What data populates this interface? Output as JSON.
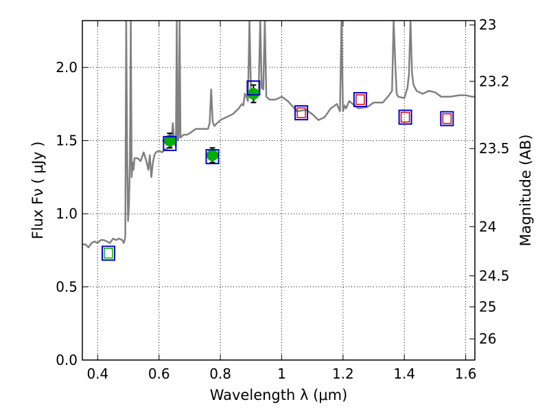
{
  "chart_data": {
    "type": "line",
    "title": "",
    "xlabel": "Wavelength  λ (μm)",
    "ylabel": "Flux  Fν  ( μJy )",
    "y2label": "Magnitude (AB)",
    "xlim": [
      0.35,
      1.63
    ],
    "ylim": [
      0.0,
      2.32
    ],
    "xticks": [
      0.4,
      0.6,
      0.8,
      1.0,
      1.2,
      1.4,
      1.6
    ],
    "xtick_labels": [
      "0.4",
      "0.6",
      "0.8",
      "1",
      "1.2",
      "1.4",
      "1.6"
    ],
    "yticks": [
      0.0,
      0.5,
      1.0,
      1.5,
      2.0
    ],
    "ytick_labels": [
      "0.0",
      "0.5",
      "1.0",
      "1.5",
      "2.0"
    ],
    "y2ticks": [
      {
        "label": "23",
        "mag": 23.0
      },
      {
        "label": "23.2",
        "mag": 23.2
      },
      {
        "label": "23.5",
        "mag": 23.5
      },
      {
        "label": "24",
        "mag": 24.0
      },
      {
        "label": "24.5",
        "mag": 24.5
      },
      {
        "label": "25",
        "mag": 25.0
      },
      {
        "label": "26",
        "mag": 26.0
      }
    ],
    "grid": true,
    "colors": {
      "spectrum": "#808080",
      "observed": "#00b000",
      "model_box": "#0000cc",
      "upper_box": "#dd0000",
      "errorbar": "#000000"
    },
    "series": [
      {
        "kind": "model-spectrum-line",
        "x": [
          0.35,
          0.36,
          0.37,
          0.38,
          0.39,
          0.4,
          0.41,
          0.42,
          0.43,
          0.44,
          0.45,
          0.46,
          0.47,
          0.48,
          0.485,
          0.488,
          0.49,
          0.493,
          0.496,
          0.499,
          0.502,
          0.505,
          0.508,
          0.511,
          0.514,
          0.517,
          0.52,
          0.53,
          0.54,
          0.55,
          0.56,
          0.565,
          0.57,
          0.575,
          0.58,
          0.585,
          0.59,
          0.6,
          0.61,
          0.62,
          0.63,
          0.64,
          0.645,
          0.65,
          0.655,
          0.658,
          0.661,
          0.664,
          0.667,
          0.67,
          0.68,
          0.69,
          0.7,
          0.72,
          0.74,
          0.76,
          0.765,
          0.77,
          0.775,
          0.78,
          0.79,
          0.8,
          0.82,
          0.84,
          0.86,
          0.87,
          0.875,
          0.88,
          0.885,
          0.89,
          0.895,
          0.9,
          0.905,
          0.91,
          0.915,
          0.92,
          0.925,
          0.93,
          0.935,
          0.94,
          0.945,
          0.95,
          0.96,
          0.98,
          1.0,
          1.02,
          1.05,
          1.08,
          1.1,
          1.12,
          1.14,
          1.16,
          1.18,
          1.19,
          1.195,
          1.2,
          1.205,
          1.21,
          1.22,
          1.25,
          1.28,
          1.3,
          1.33,
          1.35,
          1.36,
          1.365,
          1.37,
          1.375,
          1.38,
          1.4,
          1.41,
          1.415,
          1.42,
          1.425,
          1.43,
          1.44,
          1.46,
          1.48,
          1.5,
          1.52,
          1.55,
          1.58,
          1.6,
          1.62,
          1.63
        ],
        "y": [
          0.79,
          0.79,
          0.77,
          0.8,
          0.81,
          0.8,
          0.82,
          0.82,
          0.81,
          0.8,
          0.83,
          0.82,
          0.83,
          0.82,
          0.8,
          0.82,
          0.85,
          2.32,
          1.45,
          0.95,
          1.05,
          1.35,
          2.32,
          1.25,
          1.35,
          1.3,
          1.38,
          1.38,
          1.36,
          1.42,
          1.35,
          1.3,
          1.4,
          1.25,
          1.35,
          1.4,
          1.42,
          1.43,
          1.42,
          1.44,
          1.45,
          1.46,
          1.62,
          1.48,
          1.46,
          2.32,
          1.5,
          1.52,
          2.32,
          1.52,
          1.54,
          1.54,
          1.55,
          1.58,
          1.58,
          1.58,
          1.62,
          1.85,
          1.63,
          1.6,
          1.62,
          1.64,
          1.66,
          1.68,
          1.72,
          1.75,
          1.74,
          1.82,
          1.8,
          1.77,
          2.32,
          1.82,
          1.8,
          1.78,
          1.82,
          1.8,
          1.85,
          2.32,
          1.86,
          1.85,
          2.32,
          1.8,
          1.78,
          1.78,
          1.8,
          1.77,
          1.7,
          1.71,
          1.68,
          1.64,
          1.66,
          1.72,
          1.75,
          1.7,
          2.32,
          1.7,
          1.74,
          1.72,
          1.77,
          1.72,
          1.73,
          1.76,
          1.76,
          1.81,
          1.84,
          2.32,
          2.05,
          1.82,
          1.8,
          1.79,
          1.86,
          1.95,
          2.32,
          1.96,
          1.88,
          1.84,
          1.82,
          1.84,
          1.83,
          1.8,
          1.8,
          1.81,
          1.81,
          1.8,
          1.8
        ]
      },
      {
        "kind": "observed-points",
        "points": [
          {
            "x": 0.635,
            "y": 1.5,
            "yerr": 0.05
          },
          {
            "x": 0.774,
            "y": 1.4,
            "yerr": 0.05
          },
          {
            "x": 0.908,
            "y": 1.82,
            "yerr": 0.06
          }
        ]
      },
      {
        "kind": "model-photometry-boxes",
        "points": [
          {
            "x": 0.435,
            "y": 0.73
          },
          {
            "x": 0.635,
            "y": 1.48
          },
          {
            "x": 0.774,
            "y": 1.39
          },
          {
            "x": 0.908,
            "y": 1.86
          },
          {
            "x": 1.064,
            "y": 1.69
          },
          {
            "x": 1.256,
            "y": 1.78
          },
          {
            "x": 1.403,
            "y": 1.66
          },
          {
            "x": 1.539,
            "y": 1.65
          }
        ]
      },
      {
        "kind": "inner-photometry-boxes",
        "points": [
          {
            "x": 0.435,
            "y": 0.73,
            "color": "#00b000"
          },
          {
            "x": 1.064,
            "y": 1.69,
            "color": "#dd0000"
          },
          {
            "x": 1.256,
            "y": 1.78,
            "color": "#dd0000"
          },
          {
            "x": 1.403,
            "y": 1.66,
            "color": "#dd0000"
          },
          {
            "x": 1.539,
            "y": 1.65,
            "color": "#dd0000"
          }
        ]
      }
    ]
  }
}
